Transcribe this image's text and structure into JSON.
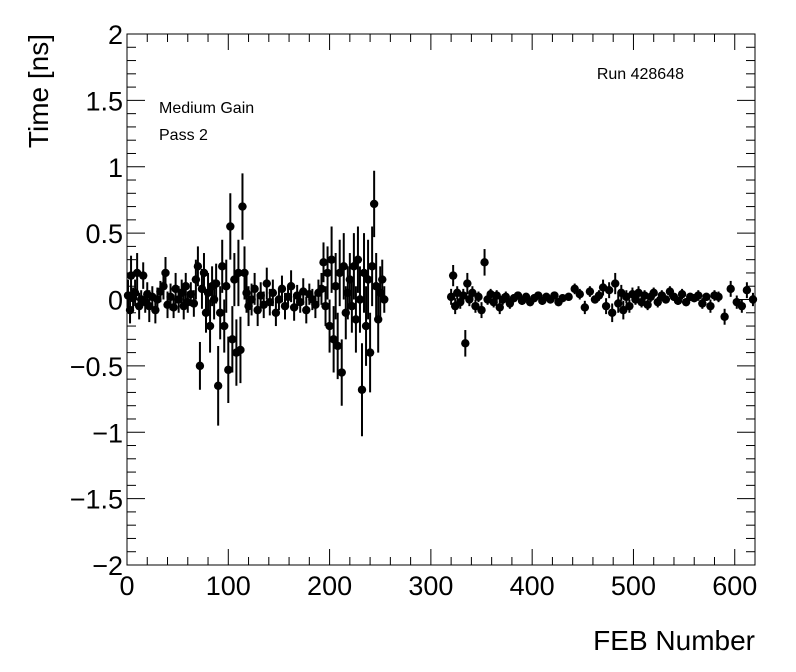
{
  "chart_data": {
    "type": "scatter",
    "title": "",
    "xlabel": "FEB Number",
    "ylabel": "Time [ns]",
    "xlim": [
      0,
      620
    ],
    "ylim": [
      -2,
      2
    ],
    "x_ticks": [
      0,
      100,
      200,
      300,
      400,
      500,
      600
    ],
    "x_tick_labels": [
      "0",
      "100",
      "200",
      "300",
      "400",
      "500",
      "600"
    ],
    "y_ticks": [
      -2,
      -1.5,
      -1,
      -0.5,
      0,
      0.5,
      1,
      1.5,
      2
    ],
    "y_tick_labels": [
      "−2",
      "−1.5",
      "−1",
      "−0.5",
      "0",
      "0.5",
      "1",
      "1.5",
      "2"
    ],
    "grid": false,
    "legend": "none",
    "annotations": {
      "run": "Run 428648",
      "gain": "Medium Gain",
      "pass": "Pass 2"
    },
    "colors": {
      "marker": "#000000",
      "frame": "#000000",
      "background": "#ffffff"
    },
    "series": [
      {
        "marker": "filled-circle",
        "points": [
          {
            "x": 1,
            "y": 0.03,
            "err": 0.12
          },
          {
            "x": 3,
            "y": -0.08,
            "err": 0.1
          },
          {
            "x": 4,
            "y": 0.18,
            "err": 0.15
          },
          {
            "x": 6,
            "y": 0.01,
            "err": 0.08
          },
          {
            "x": 8,
            "y": 0.05,
            "err": 0.1
          },
          {
            "x": 10,
            "y": 0.2,
            "err": 0.15
          },
          {
            "x": 12,
            "y": -0.05,
            "err": 0.1
          },
          {
            "x": 14,
            "y": 0.0,
            "err": 0.07
          },
          {
            "x": 16,
            "y": 0.18,
            "err": 0.1
          },
          {
            "x": 18,
            "y": -0.02,
            "err": 0.08
          },
          {
            "x": 20,
            "y": 0.04,
            "err": 0.09
          },
          {
            "x": 22,
            "y": -0.05,
            "err": 0.12
          },
          {
            "x": 25,
            "y": 0.02,
            "err": 0.08
          },
          {
            "x": 28,
            "y": -0.08,
            "err": 0.1
          },
          {
            "x": 30,
            "y": 0.0,
            "err": 0.09
          },
          {
            "x": 33,
            "y": 0.06,
            "err": 0.08
          },
          {
            "x": 36,
            "y": 0.1,
            "err": 0.1
          },
          {
            "x": 38,
            "y": 0.2,
            "err": 0.12
          },
          {
            "x": 40,
            "y": -0.04,
            "err": 0.1
          },
          {
            "x": 43,
            "y": 0.02,
            "err": 0.1
          },
          {
            "x": 46,
            "y": -0.06,
            "err": 0.08
          },
          {
            "x": 48,
            "y": 0.08,
            "err": 0.12
          },
          {
            "x": 51,
            "y": 0.0,
            "err": 0.1
          },
          {
            "x": 54,
            "y": 0.05,
            "err": 0.1
          },
          {
            "x": 56,
            "y": -0.05,
            "err": 0.1
          },
          {
            "x": 58,
            "y": 0.1,
            "err": 0.1
          },
          {
            "x": 60,
            "y": -0.02,
            "err": 0.08
          },
          {
            "x": 63,
            "y": 0.04,
            "err": 0.09
          },
          {
            "x": 66,
            "y": -0.03,
            "err": 0.1
          },
          {
            "x": 68,
            "y": 0.15,
            "err": 0.15
          },
          {
            "x": 70,
            "y": 0.25,
            "err": 0.15
          },
          {
            "x": 72,
            "y": -0.5,
            "err": 0.18
          },
          {
            "x": 74,
            "y": 0.08,
            "err": 0.15
          },
          {
            "x": 76,
            "y": 0.2,
            "err": 0.15
          },
          {
            "x": 78,
            "y": -0.1,
            "err": 0.15
          },
          {
            "x": 80,
            "y": 0.05,
            "err": 0.15
          },
          {
            "x": 82,
            "y": -0.2,
            "err": 0.2
          },
          {
            "x": 84,
            "y": 0.1,
            "err": 0.15
          },
          {
            "x": 86,
            "y": 0.0,
            "err": 0.15
          },
          {
            "x": 88,
            "y": 0.12,
            "err": 0.15
          },
          {
            "x": 90,
            "y": -0.65,
            "err": 0.3
          },
          {
            "x": 92,
            "y": -0.1,
            "err": 0.2
          },
          {
            "x": 94,
            "y": 0.25,
            "err": 0.2
          },
          {
            "x": 96,
            "y": -0.2,
            "err": 0.2
          },
          {
            "x": 98,
            "y": 0.1,
            "err": 0.2
          },
          {
            "x": 100,
            "y": -0.53,
            "err": 0.25
          },
          {
            "x": 102,
            "y": 0.55,
            "err": 0.25
          },
          {
            "x": 104,
            "y": -0.3,
            "err": 0.25
          },
          {
            "x": 106,
            "y": 0.15,
            "err": 0.2
          },
          {
            "x": 108,
            "y": -0.4,
            "err": 0.25
          },
          {
            "x": 110,
            "y": 0.2,
            "err": 0.25
          },
          {
            "x": 112,
            "y": -0.38,
            "err": 0.25
          },
          {
            "x": 114,
            "y": 0.7,
            "err": 0.25
          },
          {
            "x": 116,
            "y": 0.2,
            "err": 0.2
          },
          {
            "x": 118,
            "y": 0.05,
            "err": 0.15
          },
          {
            "x": 120,
            "y": -0.05,
            "err": 0.15
          },
          {
            "x": 123,
            "y": 0.0,
            "err": 0.12
          },
          {
            "x": 126,
            "y": 0.08,
            "err": 0.12
          },
          {
            "x": 129,
            "y": -0.08,
            "err": 0.12
          },
          {
            "x": 132,
            "y": 0.03,
            "err": 0.1
          },
          {
            "x": 135,
            "y": -0.04,
            "err": 0.1
          },
          {
            "x": 138,
            "y": 0.12,
            "err": 0.12
          },
          {
            "x": 141,
            "y": -0.02,
            "err": 0.1
          },
          {
            "x": 144,
            "y": 0.05,
            "err": 0.1
          },
          {
            "x": 147,
            "y": -0.1,
            "err": 0.1
          },
          {
            "x": 150,
            "y": 0.0,
            "err": 0.08
          },
          {
            "x": 153,
            "y": 0.08,
            "err": 0.1
          },
          {
            "x": 156,
            "y": -0.05,
            "err": 0.1
          },
          {
            "x": 159,
            "y": 0.02,
            "err": 0.08
          },
          {
            "x": 162,
            "y": 0.1,
            "err": 0.12
          },
          {
            "x": 165,
            "y": -0.06,
            "err": 0.1
          },
          {
            "x": 168,
            "y": 0.03,
            "err": 0.08
          },
          {
            "x": 171,
            "y": -0.02,
            "err": 0.08
          },
          {
            "x": 174,
            "y": 0.06,
            "err": 0.1
          },
          {
            "x": 177,
            "y": -0.08,
            "err": 0.1
          },
          {
            "x": 180,
            "y": 0.04,
            "err": 0.08
          },
          {
            "x": 183,
            "y": 0.0,
            "err": 0.08
          },
          {
            "x": 186,
            "y": -0.04,
            "err": 0.1
          },
          {
            "x": 189,
            "y": 0.05,
            "err": 0.1
          },
          {
            "x": 192,
            "y": 0.08,
            "err": 0.12
          },
          {
            "x": 194,
            "y": 0.28,
            "err": 0.15
          },
          {
            "x": 196,
            "y": -0.05,
            "err": 0.15
          },
          {
            "x": 198,
            "y": 0.2,
            "err": 0.2
          },
          {
            "x": 200,
            "y": -0.2,
            "err": 0.2
          },
          {
            "x": 202,
            "y": 0.3,
            "err": 0.25
          },
          {
            "x": 204,
            "y": -0.3,
            "err": 0.25
          },
          {
            "x": 206,
            "y": 0.1,
            "err": 0.25
          },
          {
            "x": 208,
            "y": -0.35,
            "err": 0.25
          },
          {
            "x": 210,
            "y": 0.2,
            "err": 0.25
          },
          {
            "x": 212,
            "y": -0.55,
            "err": 0.25
          },
          {
            "x": 214,
            "y": 0.25,
            "err": 0.25
          },
          {
            "x": 216,
            "y": -0.1,
            "err": 0.2
          },
          {
            "x": 218,
            "y": 0.05,
            "err": 0.2
          },
          {
            "x": 220,
            "y": 0.15,
            "err": 0.2
          },
          {
            "x": 222,
            "y": -0.05,
            "err": 0.2
          },
          {
            "x": 224,
            "y": 0.25,
            "err": 0.25
          },
          {
            "x": 226,
            "y": -0.15,
            "err": 0.25
          },
          {
            "x": 228,
            "y": 0.3,
            "err": 0.25
          },
          {
            "x": 230,
            "y": 0.0,
            "err": 0.25
          },
          {
            "x": 232,
            "y": -0.68,
            "err": 0.35
          },
          {
            "x": 234,
            "y": 0.2,
            "err": 0.3
          },
          {
            "x": 236,
            "y": -0.2,
            "err": 0.3
          },
          {
            "x": 238,
            "y": 0.15,
            "err": 0.3
          },
          {
            "x": 240,
            "y": -0.4,
            "err": 0.3
          },
          {
            "x": 242,
            "y": 0.25,
            "err": 0.3
          },
          {
            "x": 244,
            "y": 0.72,
            "err": 0.25
          },
          {
            "x": 246,
            "y": 0.1,
            "err": 0.25
          },
          {
            "x": 248,
            "y": -0.15,
            "err": 0.25
          },
          {
            "x": 250,
            "y": 0.05,
            "err": 0.2
          },
          {
            "x": 252,
            "y": 0.15,
            "err": 0.15
          },
          {
            "x": 254,
            "y": 0.0,
            "err": 0.1
          },
          {
            "x": 320,
            "y": 0.02,
            "err": 0.06
          },
          {
            "x": 322,
            "y": 0.18,
            "err": 0.08
          },
          {
            "x": 324,
            "y": -0.05,
            "err": 0.06
          },
          {
            "x": 326,
            "y": 0.05,
            "err": 0.05
          },
          {
            "x": 329,
            "y": -0.02,
            "err": 0.05
          },
          {
            "x": 332,
            "y": 0.03,
            "err": 0.05
          },
          {
            "x": 334,
            "y": -0.33,
            "err": 0.1
          },
          {
            "x": 336,
            "y": 0.12,
            "err": 0.08
          },
          {
            "x": 338,
            "y": 0.0,
            "err": 0.05
          },
          {
            "x": 341,
            "y": 0.05,
            "err": 0.05
          },
          {
            "x": 344,
            "y": -0.05,
            "err": 0.05
          },
          {
            "x": 347,
            "y": 0.02,
            "err": 0.04
          },
          {
            "x": 350,
            "y": -0.08,
            "err": 0.06
          },
          {
            "x": 353,
            "y": 0.28,
            "err": 0.1
          },
          {
            "x": 356,
            "y": 0.0,
            "err": 0.04
          },
          {
            "x": 359,
            "y": 0.04,
            "err": 0.04
          },
          {
            "x": 362,
            "y": -0.02,
            "err": 0.04
          },
          {
            "x": 365,
            "y": 0.03,
            "err": 0.04
          },
          {
            "x": 368,
            "y": -0.06,
            "err": 0.05
          },
          {
            "x": 371,
            "y": 0.0,
            "err": 0.04
          },
          {
            "x": 374,
            "y": 0.02,
            "err": 0.04
          },
          {
            "x": 378,
            "y": -0.03,
            "err": 0.04
          },
          {
            "x": 382,
            "y": 0.01,
            "err": 0.03
          },
          {
            "x": 386,
            "y": 0.03,
            "err": 0.03
          },
          {
            "x": 390,
            "y": -0.01,
            "err": 0.03
          },
          {
            "x": 394,
            "y": 0.02,
            "err": 0.03
          },
          {
            "x": 398,
            "y": -0.02,
            "err": 0.03
          },
          {
            "x": 402,
            "y": 0.01,
            "err": 0.03
          },
          {
            "x": 406,
            "y": 0.03,
            "err": 0.03
          },
          {
            "x": 410,
            "y": -0.01,
            "err": 0.03
          },
          {
            "x": 414,
            "y": 0.02,
            "err": 0.03
          },
          {
            "x": 418,
            "y": 0.0,
            "err": 0.03
          },
          {
            "x": 422,
            "y": 0.03,
            "err": 0.03
          },
          {
            "x": 426,
            "y": -0.02,
            "err": 0.03
          },
          {
            "x": 430,
            "y": 0.01,
            "err": 0.03
          },
          {
            "x": 436,
            "y": 0.02,
            "err": 0.03
          },
          {
            "x": 442,
            "y": 0.08,
            "err": 0.04
          },
          {
            "x": 447,
            "y": 0.04,
            "err": 0.04
          },
          {
            "x": 452,
            "y": -0.06,
            "err": 0.05
          },
          {
            "x": 457,
            "y": 0.06,
            "err": 0.04
          },
          {
            "x": 462,
            "y": 0.0,
            "err": 0.03
          },
          {
            "x": 466,
            "y": 0.03,
            "err": 0.04
          },
          {
            "x": 470,
            "y": 0.09,
            "err": 0.06
          },
          {
            "x": 473,
            "y": -0.05,
            "err": 0.06
          },
          {
            "x": 476,
            "y": 0.07,
            "err": 0.06
          },
          {
            "x": 479,
            "y": -0.1,
            "err": 0.07
          },
          {
            "x": 482,
            "y": 0.12,
            "err": 0.08
          },
          {
            "x": 485,
            "y": -0.03,
            "err": 0.07
          },
          {
            "x": 488,
            "y": 0.05,
            "err": 0.06
          },
          {
            "x": 490,
            "y": -0.08,
            "err": 0.07
          },
          {
            "x": 493,
            "y": 0.02,
            "err": 0.05
          },
          {
            "x": 496,
            "y": -0.05,
            "err": 0.05
          },
          {
            "x": 499,
            "y": 0.04,
            "err": 0.05
          },
          {
            "x": 502,
            "y": 0.0,
            "err": 0.04
          },
          {
            "x": 505,
            "y": 0.05,
            "err": 0.05
          },
          {
            "x": 508,
            "y": -0.02,
            "err": 0.04
          },
          {
            "x": 511,
            "y": 0.03,
            "err": 0.04
          },
          {
            "x": 514,
            "y": -0.04,
            "err": 0.04
          },
          {
            "x": 517,
            "y": 0.02,
            "err": 0.04
          },
          {
            "x": 520,
            "y": 0.05,
            "err": 0.04
          },
          {
            "x": 524,
            "y": -0.02,
            "err": 0.04
          },
          {
            "x": 528,
            "y": 0.03,
            "err": 0.04
          },
          {
            "x": 532,
            "y": 0.0,
            "err": 0.03
          },
          {
            "x": 536,
            "y": 0.06,
            "err": 0.04
          },
          {
            "x": 540,
            "y": 0.02,
            "err": 0.03
          },
          {
            "x": 544,
            "y": -0.01,
            "err": 0.03
          },
          {
            "x": 548,
            "y": 0.04,
            "err": 0.04
          },
          {
            "x": 552,
            "y": -0.02,
            "err": 0.03
          },
          {
            "x": 556,
            "y": 0.02,
            "err": 0.03
          },
          {
            "x": 560,
            "y": 0.01,
            "err": 0.03
          },
          {
            "x": 564,
            "y": 0.03,
            "err": 0.04
          },
          {
            "x": 568,
            "y": -0.03,
            "err": 0.04
          },
          {
            "x": 572,
            "y": 0.02,
            "err": 0.03
          },
          {
            "x": 576,
            "y": -0.05,
            "err": 0.05
          },
          {
            "x": 580,
            "y": 0.03,
            "err": 0.04
          },
          {
            "x": 584,
            "y": 0.02,
            "err": 0.04
          },
          {
            "x": 590,
            "y": -0.13,
            "err": 0.06
          },
          {
            "x": 596,
            "y": 0.08,
            "err": 0.06
          },
          {
            "x": 602,
            "y": -0.02,
            "err": 0.05
          },
          {
            "x": 607,
            "y": -0.05,
            "err": 0.05
          },
          {
            "x": 612,
            "y": 0.07,
            "err": 0.06
          },
          {
            "x": 618,
            "y": 0.0,
            "err": 0.05
          }
        ]
      }
    ]
  }
}
